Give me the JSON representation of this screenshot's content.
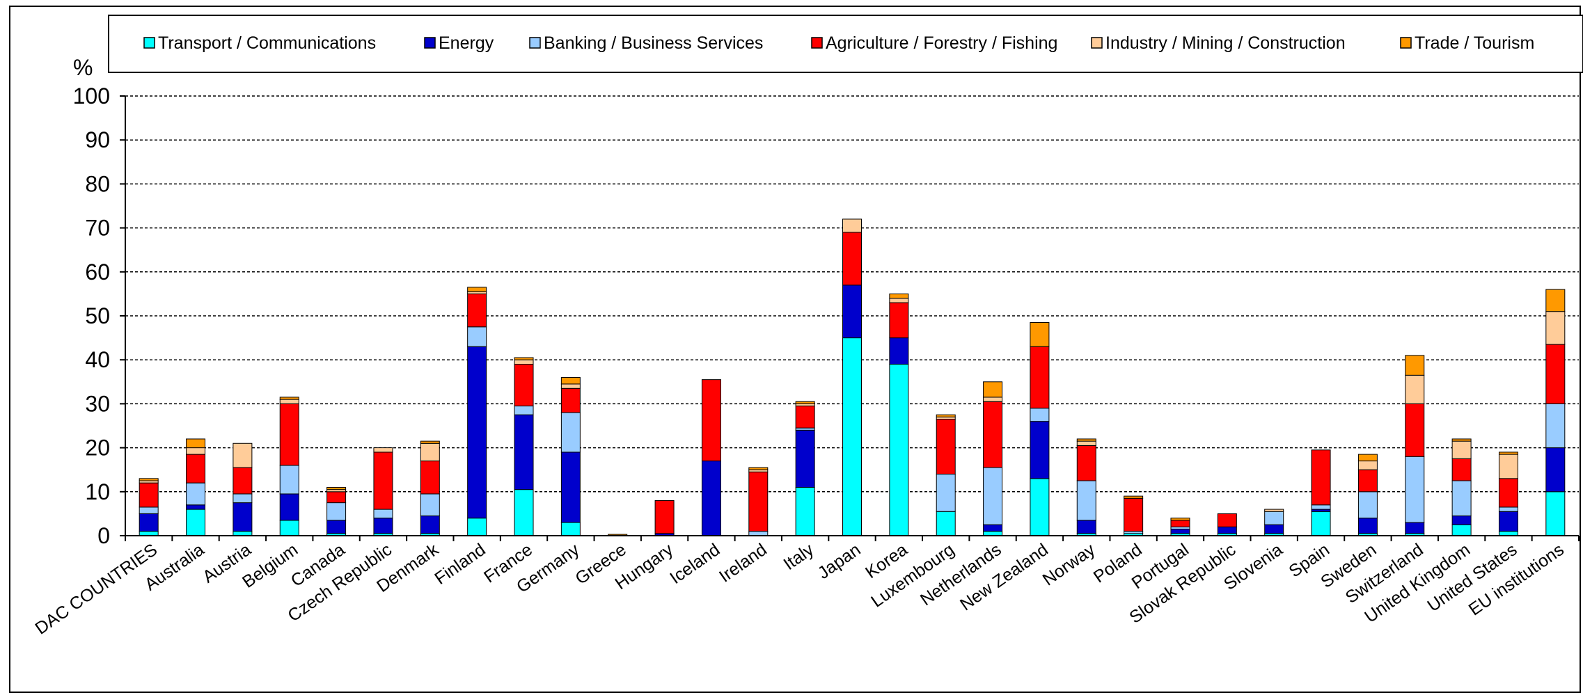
{
  "chart_data": {
    "type": "bar",
    "stacked": true,
    "title": "",
    "xlabel": "",
    "ylabel": "%",
    "ylim": [
      0,
      100
    ],
    "yticks": [
      0,
      10,
      20,
      30,
      40,
      50,
      60,
      70,
      80,
      90,
      100
    ],
    "grid": true,
    "legend_position": "top",
    "categories": [
      "DAC COUNTRIES",
      "Australia",
      "Austria",
      "Belgium",
      "Canada",
      "Czech Republic",
      "Denmark",
      "Finland",
      "France",
      "Germany",
      "Greece",
      "Hungary",
      "Iceland",
      "Ireland",
      "Italy",
      "Japan",
      "Korea",
      "Luxembourg",
      "Netherlands",
      "New Zealand",
      "Norway",
      "Poland",
      "Portugal",
      "Slovak Republic",
      "Slovenia",
      "Spain",
      "Sweden",
      "Switzerland",
      "United Kingdom",
      "United States",
      "EU institutions"
    ],
    "series": [
      {
        "name": "Transport / Communications",
        "color": "#00ffff",
        "values": [
          1,
          6,
          1,
          3.5,
          0.5,
          0.5,
          0.5,
          4,
          10.5,
          3,
          0,
          0,
          0,
          0,
          11,
          45,
          39,
          5.5,
          1,
          13,
          0.5,
          0.5,
          0.5,
          0.5,
          0.5,
          5.5,
          0.5,
          0.5,
          2.5,
          1,
          10
        ]
      },
      {
        "name": "Energy",
        "color": "#0000cc",
        "values": [
          4,
          1,
          6.5,
          6,
          3,
          3.5,
          4,
          39,
          17,
          16,
          0,
          0.5,
          17,
          0,
          13,
          12,
          6,
          0,
          1.5,
          13,
          3,
          0,
          1,
          1.5,
          2,
          0.5,
          3.5,
          2.5,
          2,
          4.5,
          10
        ]
      },
      {
        "name": "Banking / Business Services",
        "color": "#99ccff",
        "values": [
          1.5,
          5,
          2,
          6.5,
          4,
          2,
          5,
          4.5,
          2,
          9,
          0,
          0,
          0,
          1,
          0.5,
          0,
          0,
          8.5,
          13,
          3,
          9,
          0.5,
          0.5,
          0,
          3,
          1,
          6,
          15,
          8,
          1,
          10
        ]
      },
      {
        "name": "Agriculture / Forestry / Fishing",
        "color": "#ff0000",
        "values": [
          5.5,
          6.5,
          6,
          14,
          2.5,
          13,
          7.5,
          7.5,
          9.5,
          5.5,
          0,
          7.5,
          18.5,
          13.5,
          5,
          12,
          8,
          12.5,
          15,
          14,
          8,
          7.5,
          1.5,
          3,
          0,
          12.5,
          5,
          12,
          5,
          6.5,
          13.5
        ]
      },
      {
        "name": "Industry / Mining / Construction",
        "color": "#ffcc99",
        "values": [
          0.5,
          1.5,
          5.5,
          1,
          0.5,
          1,
          4,
          0.5,
          1,
          1,
          0,
          0,
          0,
          0.5,
          0.5,
          3,
          1,
          0.5,
          1,
          0,
          1,
          0,
          0,
          0,
          0.5,
          0,
          2,
          6.5,
          4,
          5.5,
          7.5
        ]
      },
      {
        "name": "Trade / Tourism",
        "color": "#ff9900",
        "values": [
          0.5,
          2,
          0,
          0.5,
          0.5,
          0,
          0.5,
          1,
          0.5,
          1.5,
          0.3,
          0,
          0,
          0.5,
          0.5,
          0,
          1,
          0.5,
          3.5,
          5.5,
          0.5,
          0.5,
          0.5,
          0,
          0,
          0,
          1.5,
          4.5,
          0.5,
          0.5,
          5
        ]
      }
    ]
  }
}
